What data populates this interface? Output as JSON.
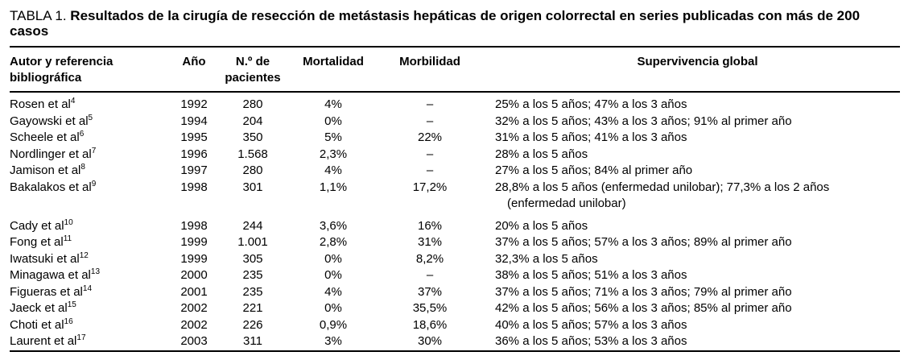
{
  "colors": {
    "background": "#ffffff",
    "text": "#000000",
    "rule": "#000000"
  },
  "title": {
    "label": "TABLA 1.",
    "text": "Resultados de la cirugía de resección de metástasis hepáticas de origen colorrectal en series publicadas con más de 200 casos"
  },
  "table": {
    "columns": [
      "Autor y referencia bibliográfica",
      "Año",
      "N.º de pacientes",
      "Mortalidad",
      "Morbilidad",
      "Supervivencia global"
    ],
    "rows": [
      {
        "author": "Rosen et al",
        "ref": "4",
        "year": "1992",
        "patients": "280",
        "mortality": "4%",
        "morbidity": "–",
        "survival": "25% a los 5 años; 47% a los 3 años"
      },
      {
        "author": "Gayowski et al",
        "ref": "5",
        "year": "1994",
        "patients": "204",
        "mortality": "0%",
        "morbidity": "–",
        "survival": "32% a los 5 años; 43% a los 3 años; 91% al primer año"
      },
      {
        "author": "Scheele et al",
        "ref": "6",
        "year": "1995",
        "patients": "350",
        "mortality": "5%",
        "morbidity": "22%",
        "survival": "31% a los 5 años; 41% a los 3 años"
      },
      {
        "author": "Nordlinger et al",
        "ref": "7",
        "year": "1996",
        "patients": "1.568",
        "mortality": "2,3%",
        "morbidity": "–",
        "survival": "28% a los 5 años"
      },
      {
        "author": "Jamison et al",
        "ref": "8",
        "year": "1997",
        "patients": "280",
        "mortality": "4%",
        "morbidity": "–",
        "survival": "27% a los 5 años; 84% al primer año"
      },
      {
        "author": "Bakalakos et al",
        "ref": "9",
        "year": "1998",
        "patients": "301",
        "mortality": "1,1%",
        "morbidity": "17,2%",
        "survival": "28,8% a los 5 años (enfermedad unilobar); 77,3% a los 2 años",
        "survival_line2": "(enfermedad unilobar)"
      },
      {
        "author": "Cady et al",
        "ref": "10",
        "year": "1998",
        "patients": "244",
        "mortality": "3,6%",
        "morbidity": "16%",
        "survival": "20% a los 5 años"
      },
      {
        "author": "Fong et al",
        "ref": "11",
        "year": "1999",
        "patients": "1.001",
        "mortality": "2,8%",
        "morbidity": "31%",
        "survival": "37% a los 5 años; 57% a los 3 años; 89% al primer año"
      },
      {
        "author": "Iwatsuki et al",
        "ref": "12",
        "year": "1999",
        "patients": "305",
        "mortality": "0%",
        "morbidity": "8,2%",
        "survival": "32,3% a los 5 años"
      },
      {
        "author": "Minagawa et al",
        "ref": "13",
        "year": "2000",
        "patients": "235",
        "mortality": "0%",
        "morbidity": "–",
        "survival": "38% a los 5 años; 51% a los 3 años"
      },
      {
        "author": "Figueras et al",
        "ref": "14",
        "year": "2001",
        "patients": "235",
        "mortality": "4%",
        "morbidity": "37%",
        "survival": "37% a los 5 años; 71% a los 3 años; 79% al primer año"
      },
      {
        "author": "Jaeck et al",
        "ref": "15",
        "year": "2002",
        "patients": "221",
        "mortality": "0%",
        "morbidity": "35,5%",
        "survival": "42% a los 5 años; 56% a los 3 años; 85% al primer año"
      },
      {
        "author": "Choti et al",
        "ref": "16",
        "year": "2002",
        "patients": "226",
        "mortality": "0,9%",
        "morbidity": "18,6%",
        "survival": "40% a los 5 años; 57% a los 3 años"
      },
      {
        "author": "Laurent et al",
        "ref": "17",
        "year": "2003",
        "patients": "311",
        "mortality": "3%",
        "morbidity": "30%",
        "survival": "36% a los 5 años; 53% a los 3 años"
      }
    ]
  }
}
